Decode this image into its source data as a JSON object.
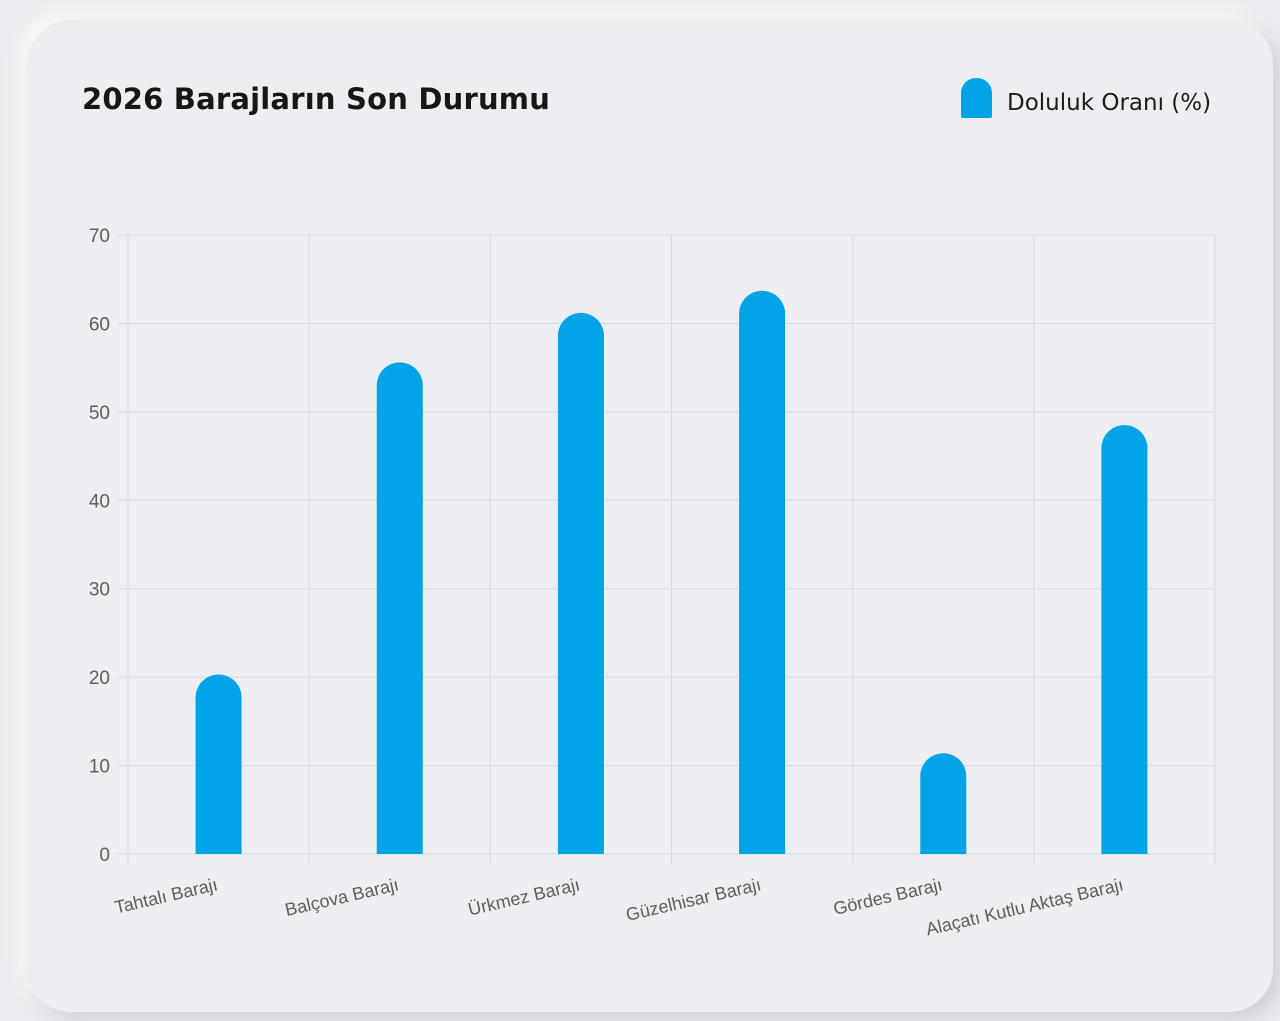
{
  "chart_data": {
    "type": "bar",
    "title": "2026 Barajların Son Durumu",
    "categories": [
      "Tahtalı Barajı",
      "Balçova Barajı",
      "Ürkmez Barajı",
      "Güzelhisar Barajı",
      "Gördes Barajı",
      "Alaçatı Kutlu Aktaş Barajı"
    ],
    "series": [
      {
        "name": "Doluluk Oranı (%)",
        "values": [
          20.3,
          55.6,
          61.2,
          63.7,
          11.4,
          48.5
        ]
      }
    ],
    "xlabel": "",
    "ylabel": "",
    "ylim": [
      0,
      70
    ],
    "yticks": [
      "0",
      "10",
      "20",
      "30",
      "40",
      "50",
      "60",
      "70"
    ],
    "grid": true,
    "legend_position": "top-right",
    "bar_color": "#03a3e8"
  }
}
